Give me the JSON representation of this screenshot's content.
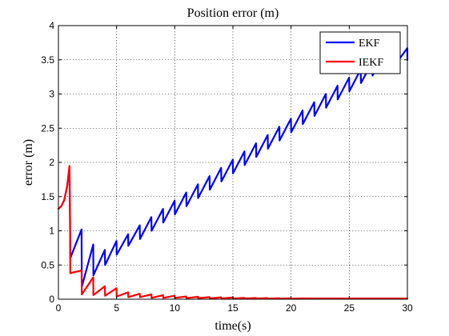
{
  "chart_data": {
    "type": "line",
    "title": "Position error (m)",
    "xlabel": "time(s)",
    "ylabel": "error (m)",
    "xlim": [
      0,
      30
    ],
    "ylim": [
      0,
      4
    ],
    "xticks": [
      "0",
      "5",
      "10",
      "15",
      "20",
      "25",
      "30"
    ],
    "yticks": [
      "0",
      "0.5",
      "1",
      "1.5",
      "2",
      "2.5",
      "3",
      "3.5",
      "4"
    ],
    "grid": true,
    "legend_position": "top-right",
    "series": [
      {
        "name": "EKF",
        "color": "#0000ff",
        "x": [
          0,
          0.25,
          0.5,
          0.75,
          0.95,
          1.0,
          1.02,
          1.99,
          2.01,
          2.99,
          3.01,
          3.99,
          4.01,
          4.99,
          5.01,
          5.99,
          6.01,
          6.99,
          7.01,
          7.99,
          8.01,
          8.99,
          9.01,
          9.99,
          10.01,
          10.99,
          11.01,
          11.99,
          12.01,
          12.99,
          13.01,
          13.99,
          14.01,
          14.99,
          15.01,
          15.99,
          16.01,
          16.99,
          17.01,
          17.99,
          18.01,
          18.99,
          19.01,
          19.99,
          20.01,
          20.99,
          21.01,
          21.99,
          22.01,
          22.99,
          23.01,
          23.99,
          24.01,
          24.99,
          25.01,
          25.99,
          26.01,
          26.99,
          27.01,
          27.99,
          28.01,
          28.99,
          29.01,
          29.99,
          30.0
        ],
        "y": [
          1.32,
          1.36,
          1.45,
          1.65,
          1.92,
          1.15,
          0.6,
          1.02,
          0.18,
          0.8,
          0.35,
          0.72,
          0.5,
          0.85,
          0.65,
          0.95,
          0.78,
          1.08,
          0.88,
          1.2,
          1.0,
          1.32,
          1.12,
          1.44,
          1.24,
          1.56,
          1.36,
          1.68,
          1.48,
          1.8,
          1.6,
          1.92,
          1.72,
          2.04,
          1.84,
          2.16,
          1.96,
          2.28,
          2.08,
          2.4,
          2.2,
          2.52,
          2.32,
          2.64,
          2.44,
          2.76,
          2.56,
          2.88,
          2.68,
          3.0,
          2.8,
          3.12,
          2.92,
          3.24,
          3.04,
          3.36,
          3.16,
          3.47,
          3.27,
          3.56,
          3.36,
          3.64,
          3.44,
          3.67,
          3.5
        ]
      },
      {
        "name": "IEKF",
        "color": "#ff0000",
        "x": [
          0,
          0.25,
          0.5,
          0.75,
          0.95,
          1.0,
          1.02,
          1.99,
          2.01,
          2.99,
          3.01,
          3.99,
          4.01,
          4.99,
          5.01,
          5.99,
          6.01,
          6.99,
          7.01,
          7.99,
          8.01,
          8.99,
          9.01,
          9.99,
          10.01,
          10.99,
          11.01,
          11.99,
          12.01,
          12.99,
          13.01,
          13.99,
          14.01,
          14.99,
          15.01,
          15.99,
          16.01,
          16.99,
          17.01,
          17.99,
          18.01,
          18.99,
          19.01,
          19.99,
          20.01,
          21.0,
          22.0,
          23.0,
          24.0,
          25.0,
          26.0,
          27.0,
          28.0,
          29.0,
          30.0
        ],
        "y": [
          1.32,
          1.36,
          1.45,
          1.65,
          1.95,
          1.15,
          0.38,
          0.42,
          0.07,
          0.32,
          0.06,
          0.19,
          0.05,
          0.16,
          0.04,
          0.1,
          0.03,
          0.08,
          0.03,
          0.07,
          0.02,
          0.06,
          0.02,
          0.05,
          0.02,
          0.04,
          0.015,
          0.035,
          0.015,
          0.03,
          0.01,
          0.028,
          0.01,
          0.025,
          0.01,
          0.02,
          0.01,
          0.018,
          0.01,
          0.016,
          0.008,
          0.015,
          0.008,
          0.014,
          0.008,
          0.012,
          0.01,
          0.01,
          0.01,
          0.01,
          0.01,
          0.01,
          0.01,
          0.01,
          0.01
        ]
      }
    ]
  }
}
